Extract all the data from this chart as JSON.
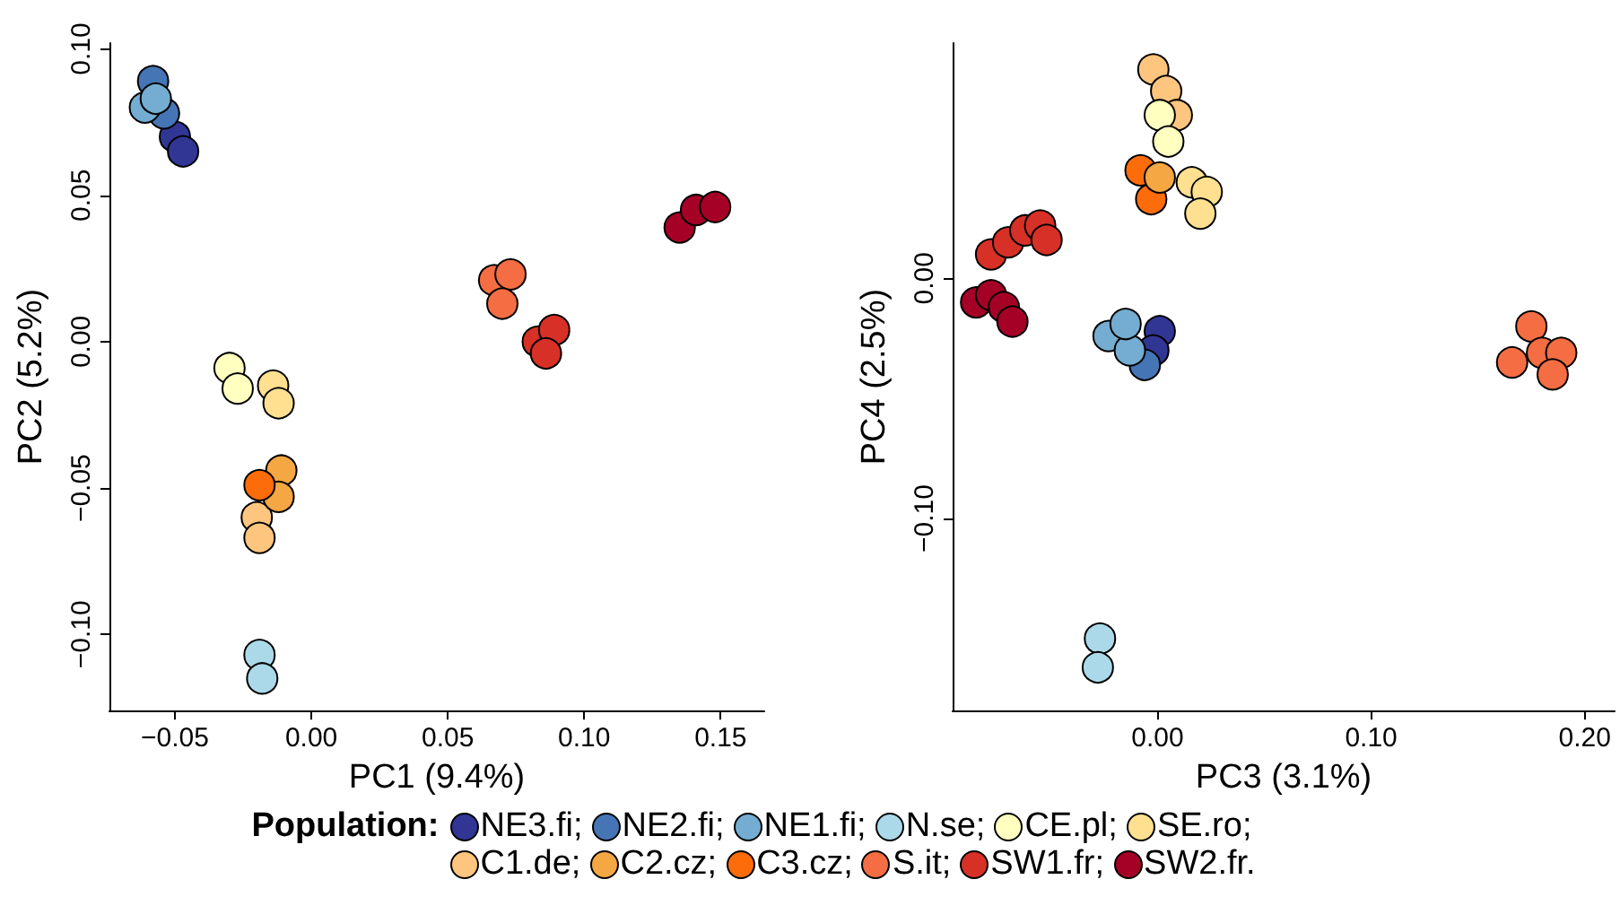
{
  "chart_data": [
    {
      "type": "scatter",
      "xlabel": "PC1 (9.4%)",
      "ylabel": "PC2 (5.2%)",
      "marker": "circle",
      "legend": "bottom",
      "legend_title": "Population:",
      "xlim": [
        -0.074,
        0.166
      ],
      "ylim": [
        -0.126,
        0.102
      ],
      "xticks": [
        {
          "value": -0.05,
          "label": "−0.05"
        },
        {
          "value": 0,
          "label": "0.00"
        },
        {
          "value": 0.05,
          "label": "0.05"
        },
        {
          "value": 0.1,
          "label": "0.10"
        },
        {
          "value": 0.15,
          "label": "0.15"
        }
      ],
      "yticks": [
        {
          "value": -0.1,
          "label": "−0.10"
        },
        {
          "value": -0.05,
          "label": "−0.05"
        },
        {
          "value": 0,
          "label": "0.00"
        },
        {
          "value": 0.05,
          "label": "0.05"
        },
        {
          "value": 0.1,
          "label": "0.10"
        }
      ],
      "series": [
        {
          "name": "NE3.fi;",
          "color": "#313695",
          "x": [
            -0.05,
            -0.047
          ],
          "values": [
            0.07,
            0.065
          ]
        },
        {
          "name": "NE2.fi;",
          "color": "#4575b4",
          "x": [
            -0.054,
            -0.058
          ],
          "values": [
            0.078,
            0.089
          ]
        },
        {
          "name": "NE1.fi;",
          "color": "#74add1",
          "x": [
            -0.061,
            -0.057
          ],
          "values": [
            0.08,
            0.083
          ]
        },
        {
          "name": "N.se;",
          "color": "#abd9e9",
          "x": [
            -0.019,
            -0.018
          ],
          "values": [
            -0.107,
            -0.115
          ]
        },
        {
          "name": "CE.pl;",
          "color": "#ffffbf",
          "x": [
            -0.03,
            -0.027
          ],
          "values": [
            -0.009,
            -0.016
          ]
        },
        {
          "name": "SE.ro;",
          "color": "#fee090",
          "x": [
            -0.014,
            -0.012
          ],
          "values": [
            -0.015,
            -0.021
          ]
        },
        {
          "name": "C1.de;",
          "color": "#fec57e",
          "x": [
            -0.02,
            -0.019
          ],
          "values": [
            -0.06,
            -0.067
          ]
        },
        {
          "name": "C2.cz;",
          "color": "#f4a742",
          "x": [
            -0.011,
            -0.012
          ],
          "values": [
            -0.044,
            -0.053
          ]
        },
        {
          "name": "C3.cz;",
          "color": "#fc6c0a",
          "x": [
            -0.019
          ],
          "values": [
            -0.049
          ]
        },
        {
          "name": "S.it;",
          "color": "#f46d43",
          "x": [
            0.067,
            0.073,
            0.07
          ],
          "values": [
            0.021,
            0.023,
            0.013
          ]
        },
        {
          "name": "SW1.fr;",
          "color": "#d73027",
          "x": [
            0.083,
            0.089,
            0.086
          ],
          "values": [
            0,
            0.004,
            -0.004
          ]
        },
        {
          "name": "SW2.fr.",
          "color": "#a50026",
          "x": [
            0.135,
            0.141,
            0.148
          ],
          "values": [
            0.039,
            0.045,
            0.046
          ]
        }
      ]
    },
    {
      "type": "scatter",
      "xlabel": "PC3 (3.1%)",
      "ylabel": "PC4 (2.5%)",
      "marker": "circle",
      "xlim": [
        -0.096,
        0.214
      ],
      "ylim": [
        -0.18,
        0.098
      ],
      "xticks": [
        {
          "value": 0,
          "label": "0.00"
        },
        {
          "value": 0.1,
          "label": "0.10"
        },
        {
          "value": 0.2,
          "label": "0.20"
        }
      ],
      "yticks": [
        {
          "value": -0.1,
          "label": "−0.10"
        },
        {
          "value": 0,
          "label": "0.00"
        }
      ],
      "series": [
        {
          "color": "#313695",
          "x": [
            0.001,
            -0.002
          ],
          "values": [
            -0.022,
            -0.03
          ]
        },
        {
          "color": "#4575b4",
          "x": [
            -0.006
          ],
          "values": [
            -0.036
          ]
        },
        {
          "color": "#74add1",
          "x": [
            -0.023,
            -0.013,
            -0.015
          ],
          "values": [
            -0.024,
            -0.03,
            -0.019
          ]
        },
        {
          "color": "#abd9e9",
          "x": [
            -0.027,
            -0.028
          ],
          "values": [
            -0.15,
            -0.162
          ]
        },
        {
          "color": "#fec57e",
          "x": [
            -0.002,
            0.004,
            0.009
          ],
          "values": [
            0.087,
            0.078,
            0.068
          ]
        },
        {
          "color": "#fc6c0a",
          "x": [
            -0.008,
            -0.003
          ],
          "values": [
            0.045,
            0.033
          ]
        },
        {
          "color": "#f4a742",
          "x": [
            0.001
          ],
          "values": [
            0.042
          ]
        },
        {
          "color": "#ffffbf",
          "x": [
            0.001,
            0.005
          ],
          "values": [
            0.068,
            0.057
          ]
        },
        {
          "color": "#fee090",
          "x": [
            0.016,
            0.023,
            0.02
          ],
          "values": [
            0.04,
            0.036,
            0.027
          ]
        },
        {
          "color": "#f46d43",
          "x": [
            0.166,
            0.175,
            0.18,
            0.189,
            0.185
          ],
          "values": [
            -0.035,
            -0.02,
            -0.031,
            -0.031,
            -0.04
          ]
        },
        {
          "color": "#d73027",
          "x": [
            -0.078,
            -0.07,
            -0.062,
            -0.055,
            -0.052
          ],
          "values": [
            0.01,
            0.015,
            0.02,
            0.022,
            0.016
          ]
        },
        {
          "color": "#a50026",
          "x": [
            -0.085,
            -0.078,
            -0.072,
            -0.068
          ],
          "values": [
            -0.01,
            -0.007,
            -0.012,
            -0.018
          ]
        }
      ]
    }
  ]
}
